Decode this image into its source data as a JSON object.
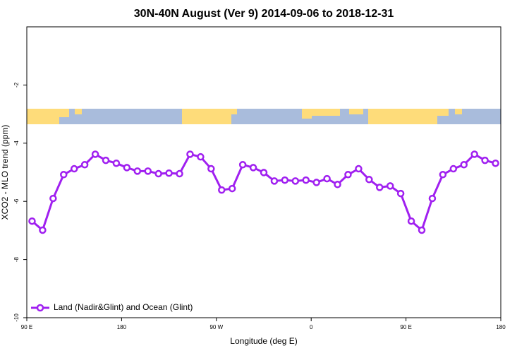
{
  "chart_data": {
    "type": "line",
    "title": "30N-40N August (Ver 9)   2014-09-06 to 2018-12-31",
    "xlabel": "Longitude (deg E)",
    "ylabel": "XCO2 - MLO trend (ppm)",
    "x": [
      95,
      105,
      115,
      125,
      135,
      145,
      155,
      165,
      175,
      185,
      195,
      205,
      215,
      225,
      235,
      245,
      255,
      265,
      275,
      285,
      295,
      305,
      315,
      325,
      335,
      345,
      355,
      365,
      375,
      385,
      395,
      405,
      415,
      425,
      435,
      445,
      455,
      465,
      475,
      485,
      495,
      505,
      515,
      525,
      535
    ],
    "series": [
      {
        "name": "Land (Nadir&Glint) and Ocean (Glint)",
        "color": "#a020f0",
        "values": [
          -6.68,
          -6.99,
          -5.9,
          -5.08,
          -4.88,
          -4.74,
          -4.38,
          -4.59,
          -4.69,
          -4.84,
          -4.96,
          -4.96,
          -5.05,
          -5.03,
          -5.05,
          -4.38,
          -4.47,
          -4.88,
          -5.61,
          -5.56,
          -4.74,
          -4.84,
          -5.01,
          -5.3,
          -5.27,
          -5.3,
          -5.27,
          -5.35,
          -5.22,
          -5.42,
          -5.08,
          -4.88,
          -5.25,
          -5.52,
          -5.47,
          -5.73,
          -6.68,
          -6.99,
          -5.9,
          -5.08,
          -4.88,
          -4.74,
          -4.38,
          -4.59,
          -4.69
        ]
      }
    ],
    "xlim": [
      90,
      540
    ],
    "xticks": [
      {
        "value": 90,
        "label": "90 E"
      },
      180,
      {
        "value": 270,
        "label": "90 W"
      },
      {
        "value": 360,
        "label": "0"
      },
      {
        "value": 450,
        "label": "90 E"
      },
      {
        "value": 540,
        "label": "180"
      }
    ],
    "ylim": [
      -10,
      0
    ],
    "yticks": [
      -2,
      -4,
      -6,
      -8,
      -10
    ],
    "legend": "bottom-left"
  }
}
